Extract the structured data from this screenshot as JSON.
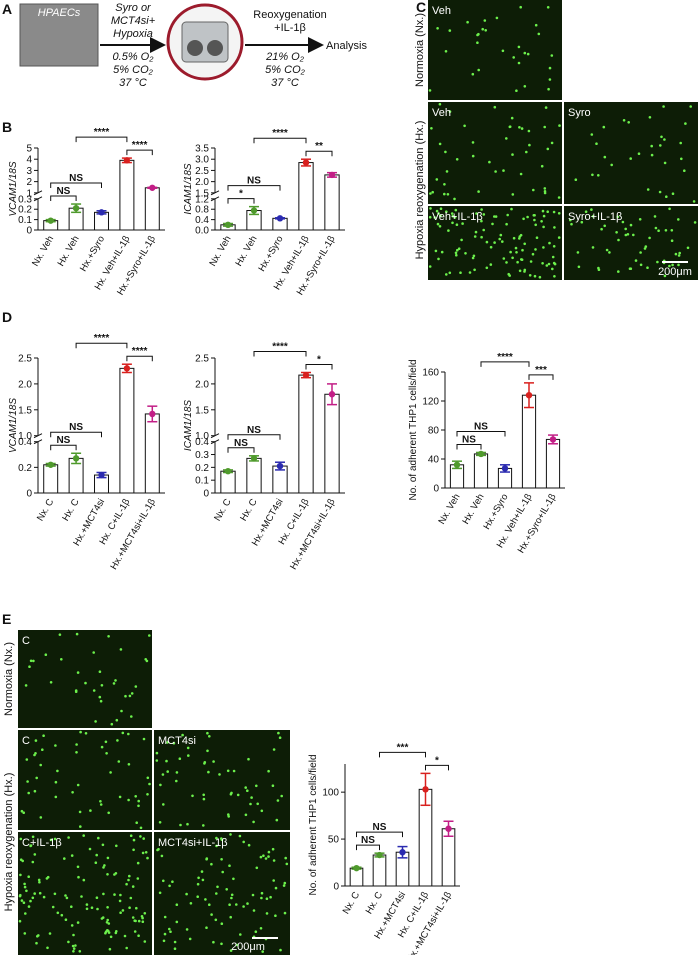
{
  "figure": {
    "panel_labels": [
      "A",
      "B",
      "C",
      "D",
      "E"
    ],
    "schematic": {
      "cells": "HPAECs",
      "step1": [
        "Syro or",
        "MCT4si+",
        "Hypoxia"
      ],
      "cond1": [
        "0.5% O₂",
        "5% CO₂",
        "37 °C"
      ],
      "step2": [
        "Reoxygenation",
        "+IL-1β"
      ],
      "cond2": [
        "21% O₂",
        "5% CO₂",
        "37 °C"
      ],
      "end": "Analysis"
    },
    "micrographs_c": {
      "rows": [
        "Normoxia (Nx.)",
        "Hypoxia reoxygenation (Hx.)"
      ],
      "tiles": [
        "Veh",
        "Veh",
        "Syro",
        "Veh+IL-1β",
        "Syro+IL-1β"
      ],
      "scale": "200μm"
    },
    "micrographs_e": {
      "rows": [
        "Normoxia (Nx.)",
        "Hypoxia reoxygenation (Hx.)"
      ],
      "tiles": [
        "C",
        "C",
        "MCT4si",
        "C+IL-1β",
        "MCT4si+IL-1β"
      ],
      "scale": "200μm"
    }
  },
  "chart_data": [
    {
      "type": "bar",
      "ylabel": "VCAM1/18S",
      "categories": [
        "Nx. Veh",
        "Hx. Veh",
        "Hx.+Syro",
        "Hx. Veh+IL-1β",
        "Hx.+Syro+IL-1β"
      ],
      "values": [
        0.09,
        0.21,
        0.17,
        3.9,
        1.45
      ],
      "errors": [
        0.01,
        0.04,
        0.015,
        0.2,
        0.04
      ],
      "colors": [
        "#4f9a2c",
        "#4f9a2c",
        "#2b2bb0",
        "#d8201e",
        "#c21e86"
      ],
      "ylim": [
        0,
        5
      ],
      "ybreak": [
        0.3,
        1
      ],
      "yticks": [
        0,
        0.1,
        0.2,
        0.3,
        1,
        2,
        3,
        4,
        5
      ],
      "brackets": [
        {
          "label": "NS",
          "between": [
            0,
            1
          ]
        },
        {
          "label": "NS",
          "between": [
            0,
            2
          ]
        },
        {
          "label": "****",
          "between": [
            3,
            4
          ]
        },
        {
          "label": "****",
          "between": [
            1,
            3
          ]
        }
      ]
    },
    {
      "type": "bar",
      "ylabel": "ICAM1/18S",
      "categories": [
        "Nx. Veh",
        "Hx. Veh",
        "Hx.+Syro",
        "Hx. Veh+IL-1β",
        "Hx.+Syro+IL-1β"
      ],
      "values": [
        0.2,
        0.75,
        0.45,
        2.85,
        2.3
      ],
      "errors": [
        0.05,
        0.15,
        0.02,
        0.15,
        0.1
      ],
      "colors": [
        "#4f9a2c",
        "#4f9a2c",
        "#2b2bb0",
        "#d8201e",
        "#c21e86"
      ],
      "ylim": [
        0,
        3.5
      ],
      "ybreak": [
        1.2,
        1.5
      ],
      "yticks": [
        {
          "value": 0,
          "label": "0.0"
        },
        0.4,
        0.8,
        1.2,
        1.5,
        {
          "value": 2,
          "label": "2.0"
        },
        2.5,
        {
          "value": 3,
          "label": "3.0"
        },
        3.5
      ],
      "brackets": [
        {
          "label": "*",
          "between": [
            0,
            1
          ]
        },
        {
          "label": "NS",
          "between": [
            0,
            2
          ]
        },
        {
          "label": "**",
          "between": [
            3,
            4
          ]
        },
        {
          "label": "****",
          "between": [
            1,
            3
          ]
        }
      ]
    },
    {
      "type": "bar",
      "ylabel": "VCAM1/18S",
      "categories": [
        "Nx. C",
        "Hx. C",
        "Hx.+MCT4si",
        "Hx. C+IL-1β",
        "Hx.+MCT4si+IL-1β"
      ],
      "values": [
        0.22,
        0.27,
        0.14,
        2.3,
        1.42
      ],
      "errors": [
        0.01,
        0.04,
        0.02,
        0.08,
        0.15
      ],
      "colors": [
        "#4f9a2c",
        "#4f9a2c",
        "#2b2bb0",
        "#d8201e",
        "#c21e86"
      ],
      "ylim": [
        0,
        2.5
      ],
      "ybreak": [
        0.4,
        1
      ],
      "yticks": [
        0,
        0.2,
        0.4,
        {
          "value": 1,
          "label": "1.0"
        },
        1.5,
        {
          "value": 2,
          "label": "2.0"
        },
        2.5
      ],
      "brackets": [
        {
          "label": "NS",
          "between": [
            0,
            1
          ]
        },
        {
          "label": "NS",
          "between": [
            0,
            2
          ]
        },
        {
          "label": "****",
          "between": [
            3,
            4
          ]
        },
        {
          "label": "****",
          "between": [
            1,
            3
          ]
        }
      ]
    },
    {
      "type": "bar",
      "ylabel": "ICAM1/18S",
      "categories": [
        "Nx. C",
        "Hx. C",
        "Hx.+MCT4si",
        "Hx. C+IL-1β",
        "Hx.+MCT4si+IL-1β"
      ],
      "values": [
        0.17,
        0.27,
        0.21,
        2.17,
        1.8
      ],
      "errors": [
        0.01,
        0.02,
        0.03,
        0.05,
        0.2
      ],
      "colors": [
        "#4f9a2c",
        "#4f9a2c",
        "#2b2bb0",
        "#d8201e",
        "#c21e86"
      ],
      "ylim": [
        0,
        2.5
      ],
      "ybreak": [
        0.4,
        1
      ],
      "yticks": [
        0,
        0.1,
        0.2,
        0.3,
        0.4,
        {
          "value": 1,
          "label": "1.0"
        },
        1.5,
        {
          "value": 2,
          "label": "2.0"
        },
        2.5
      ],
      "brackets": [
        {
          "label": "NS",
          "between": [
            0,
            1
          ]
        },
        {
          "label": "NS",
          "between": [
            0,
            2
          ]
        },
        {
          "label": "*",
          "between": [
            3,
            4
          ]
        },
        {
          "label": "****",
          "between": [
            1,
            3
          ]
        }
      ]
    },
    {
      "type": "bar",
      "ylabel": "No. of adherent THP1 cells/field",
      "categories": [
        "Nx. Veh",
        "Hx. Veh",
        "Hx.+Syro",
        "Hx. Veh+IL-1β",
        "Hx.+Syro+IL-1β"
      ],
      "values": [
        32,
        47,
        27,
        128,
        67
      ],
      "errors": [
        5,
        2,
        5,
        17,
        6
      ],
      "colors": [
        "#4f9a2c",
        "#4f9a2c",
        "#2b2bb0",
        "#d8201e",
        "#c21e86"
      ],
      "ylim": [
        0,
        160
      ],
      "yticks": [
        0,
        40,
        80,
        120,
        160
      ],
      "brackets": [
        {
          "label": "NS",
          "between": [
            0,
            1
          ]
        },
        {
          "label": "NS",
          "between": [
            0,
            2
          ]
        },
        {
          "label": "***",
          "between": [
            3,
            4
          ]
        },
        {
          "label": "****",
          "between": [
            1,
            3
          ]
        }
      ]
    },
    {
      "type": "bar",
      "ylabel": "No. of adherent THP1 cells/field",
      "categories": [
        "Nx. C",
        "Hx. C",
        "Hx.+MCT4si",
        "Hx. C+IL-1β",
        "Hx.+MCT4si+IL-1β"
      ],
      "values": [
        19,
        33,
        36,
        103,
        61
      ],
      "errors": [
        1,
        2,
        6,
        17,
        8
      ],
      "colors": [
        "#4f9a2c",
        "#4f9a2c",
        "#2b2bb0",
        "#d8201e",
        "#c21e86"
      ],
      "ylim": [
        0,
        130
      ],
      "yticks": [
        0,
        50,
        100
      ],
      "brackets": [
        {
          "label": "NS",
          "between": [
            0,
            1
          ]
        },
        {
          "label": "NS",
          "between": [
            0,
            2
          ]
        },
        {
          "label": "*",
          "between": [
            3,
            4
          ]
        },
        {
          "label": "***",
          "between": [
            1,
            3
          ]
        }
      ]
    }
  ]
}
